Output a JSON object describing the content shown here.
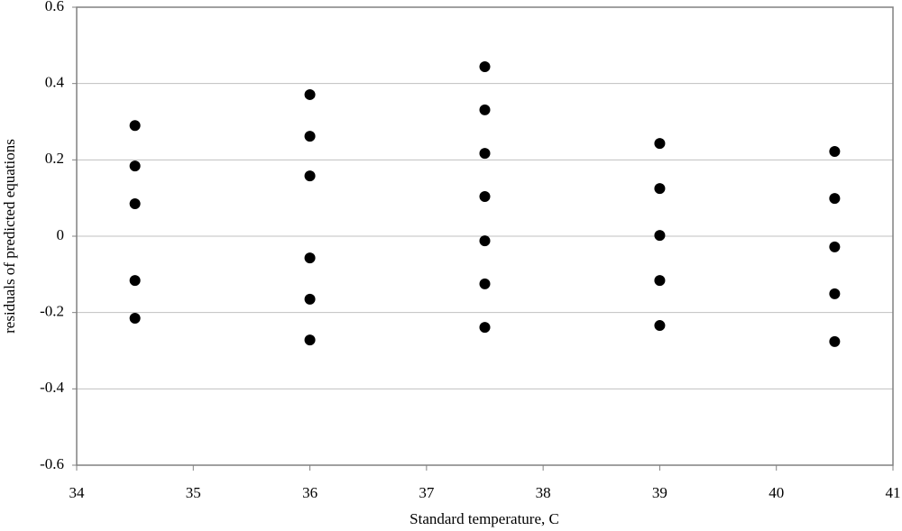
{
  "chart_data": {
    "type": "scatter",
    "x_label": "Standard temperature, C",
    "y_label": "residuals of predicted equations",
    "x": [
      34.5,
      34.5,
      34.5,
      34.5,
      34.5,
      36,
      36,
      36,
      36,
      36,
      36,
      37.5,
      37.5,
      37.5,
      37.5,
      37.5,
      37.5,
      37.5,
      39,
      39,
      39,
      39,
      39,
      40.5,
      40.5,
      40.5,
      40.5,
      40.5
    ],
    "values": [
      0.29,
      0.184,
      0.085,
      -0.116,
      -0.215,
      0.371,
      0.262,
      0.158,
      -0.057,
      -0.165,
      -0.272,
      0.444,
      0.331,
      0.217,
      0.104,
      -0.012,
      -0.125,
      -0.239,
      0.243,
      0.125,
      0.002,
      -0.116,
      -0.234,
      0.222,
      0.099,
      -0.028,
      -0.151,
      -0.276
    ],
    "color": "#000000",
    "xlim": [
      34,
      41
    ],
    "xticks": [
      34,
      35,
      36,
      37,
      38,
      39,
      40,
      41
    ],
    "ylim": [
      -0.6,
      0.6
    ],
    "yticks": [
      -0.6,
      -0.4,
      -0.2,
      0,
      0.2,
      0.4,
      0.6
    ],
    "grid": true
  }
}
